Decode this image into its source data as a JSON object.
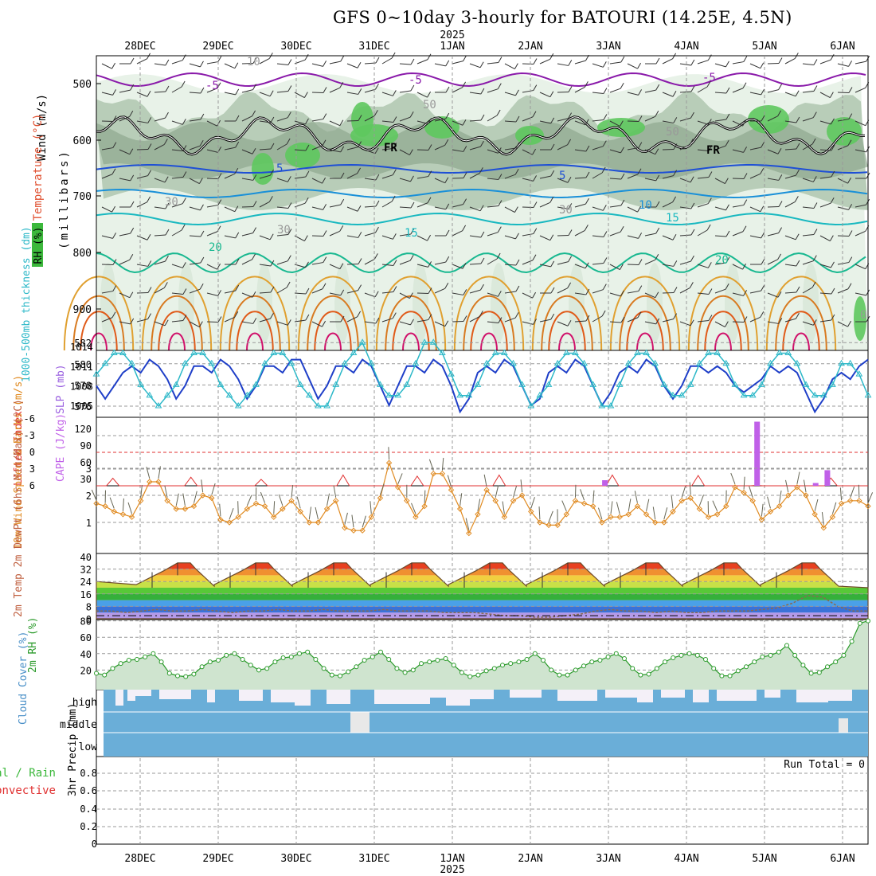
{
  "title": "GFS 0~10day 3-hourly for BATOURI (14.25E, 4.5N)",
  "colors": {
    "grid": "#9a9a9a",
    "slp": "#1f3fc8",
    "thick": "#2cb8c8",
    "lifted": "#e03030",
    "cape": "#c060e8",
    "wind": "#e08a20",
    "temp": "#6b4a2a",
    "dew": "#8a6a50",
    "rh": "#2a9a2a",
    "cloud": "#6aaed8",
    "purple": "#8a1aaa",
    "blue5": "#1e4fd6",
    "blue10": "#1a90d8",
    "teal15": "#18b8c0",
    "green20": "#18b890",
    "fr": "#000000"
  },
  "chart_data": {
    "type": "meteogram",
    "x_dates": [
      "28DEC",
      "29DEC",
      "30DEC",
      "31DEC",
      "1JAN",
      "2JAN",
      "3JAN",
      "4JAN",
      "5JAN",
      "6JAN"
    ],
    "year": "2025",
    "cross_section": {
      "ylabel": "(millibars)",
      "y_ticks": [
        500,
        600,
        700,
        800,
        900
      ],
      "side_labels": [
        "Wind (m/s)",
        "Temperature (°C)",
        "RH (%)"
      ],
      "contour_labels": [
        "10",
        "-5",
        "-5",
        "-5",
        "50",
        "30",
        "FR",
        "FR",
        "5",
        "5",
        "10",
        "15",
        "15",
        "30",
        "20",
        "20",
        "30",
        "50",
        "0"
      ]
    },
    "slp_thickness": {
      "left_label": "1000-500mb thickness (dm)",
      "right_label": "SLP (mb)",
      "left_ticks": [
        576,
        578,
        580,
        582
      ],
      "right_ticks": [
        1005,
        1008,
        1011,
        1014
      ],
      "slp": [
        1008,
        1006,
        1008,
        1010,
        1011,
        1010,
        1012,
        1011,
        1009,
        1006,
        1008,
        1011,
        1011,
        1010,
        1012,
        1011,
        1009,
        1006,
        1008,
        1011,
        1011,
        1010,
        1012,
        1012,
        1009,
        1006,
        1008,
        1011,
        1011,
        1010,
        1012,
        1011,
        1008,
        1005,
        1008,
        1011,
        1011,
        1010,
        1012,
        1011,
        1008,
        1004,
        1006,
        1010,
        1011,
        1010,
        1012,
        1011,
        1008,
        1005,
        1006,
        1010,
        1011,
        1010,
        1012,
        1011,
        1008,
        1005,
        1007,
        1010,
        1011,
        1010,
        1012,
        1011,
        1008,
        1006,
        1008,
        1011,
        1011,
        1010,
        1011,
        1010,
        1008,
        1007,
        1008,
        1009,
        1011,
        1010,
        1011,
        1010,
        1007,
        1004,
        1006,
        1009,
        1010,
        1009,
        1011,
        1012
      ],
      "thickness": [
        579,
        580,
        581,
        581,
        580,
        578,
        577,
        576,
        577,
        578,
        580,
        581,
        581,
        580,
        578,
        577,
        576,
        577,
        578,
        580,
        581,
        581,
        580,
        578,
        577,
        576,
        576,
        578,
        580,
        581,
        582,
        580,
        578,
        577,
        577,
        578,
        580,
        582,
        582,
        581,
        579,
        577,
        577,
        578,
        580,
        581,
        581,
        580,
        578,
        576,
        577,
        578,
        580,
        581,
        581,
        580,
        578,
        576,
        576,
        578,
        580,
        581,
        581,
        580,
        578,
        577,
        577,
        578,
        580,
        581,
        581,
        580,
        578,
        577,
        577,
        578,
        580,
        581,
        581,
        580,
        578,
        577,
        577,
        578,
        580,
        580,
        579,
        577
      ]
    },
    "lifted_cape": {
      "left_label": "Lifted Index",
      "right_label": "CAPE (J/kg)",
      "left_ticks": [
        "-6",
        "-3",
        "0",
        "3",
        "6"
      ],
      "right_ticks": [
        "120",
        "90",
        "60",
        "30"
      ],
      "lifted_peaks": [
        [
          0.1,
          3.5
        ],
        [
          1.1,
          4.0
        ],
        [
          2.0,
          3.0
        ],
        [
          3.05,
          5.0
        ],
        [
          4.0,
          4.5
        ],
        [
          5.05,
          5.0
        ],
        [
          6.5,
          5.0
        ],
        [
          7.6,
          4.8
        ],
        [
          8.35,
          0.2
        ],
        [
          9.3,
          3.6
        ]
      ],
      "cape_bars": [
        [
          6.4,
          10
        ],
        [
          8.35,
          115
        ],
        [
          9.1,
          5
        ],
        [
          9.25,
          28
        ]
      ]
    },
    "wind10m": {
      "label": "10m Wind Speed & Barbs (m/s)",
      "y_ticks": [
        1,
        2,
        3
      ],
      "speed": [
        1.7,
        1.6,
        1.4,
        1.3,
        1.2,
        1.8,
        2.5,
        2.5,
        1.8,
        1.5,
        1.5,
        1.6,
        2.0,
        1.9,
        1.1,
        1.0,
        1.2,
        1.5,
        1.7,
        1.6,
        1.2,
        1.5,
        1.8,
        1.4,
        1.0,
        1.0,
        1.5,
        1.8,
        0.8,
        0.7,
        0.7,
        1.2,
        1.9,
        3.2,
        2.3,
        1.8,
        1.2,
        1.6,
        2.8,
        2.8,
        2.2,
        1.5,
        0.6,
        1.3,
        2.2,
        1.8,
        1.2,
        1.8,
        2.0,
        1.4,
        1.0,
        0.9,
        0.9,
        1.3,
        1.8,
        1.7,
        1.6,
        1.0,
        1.2,
        1.2,
        1.3,
        1.6,
        1.3,
        1.0,
        1.0,
        1.4,
        1.8,
        1.9,
        1.5,
        1.2,
        1.3,
        1.6,
        2.3,
        2.1,
        1.8,
        1.1,
        1.4,
        1.6,
        2.0,
        2.3,
        2.0,
        1.3,
        0.8,
        1.2,
        1.7,
        1.8,
        1.8,
        1.6
      ]
    },
    "temp2m": {
      "label": "2m Temp 2m DewPt (6hr Min/Max) (°C)",
      "y_ticks": [
        0,
        8,
        16,
        24,
        32,
        40
      ],
      "max_temps": [
        35,
        35,
        35,
        35,
        35,
        35,
        35,
        35,
        35
      ],
      "min_temp": 20,
      "dewpoint": [
        5,
        5,
        4,
        5,
        6,
        5,
        5,
        6,
        5,
        4,
        5,
        5,
        6,
        5,
        5,
        6,
        5,
        5,
        5,
        6,
        5,
        5,
        5,
        4,
        4,
        4,
        3,
        2,
        2,
        1,
        1,
        2,
        3,
        5,
        6,
        5,
        5,
        4,
        5,
        4,
        4,
        5,
        5,
        5,
        6,
        7,
        10,
        15,
        14,
        8,
        5,
        5
      ]
    },
    "rh2m": {
      "label": "2m RH (%)",
      "y_ticks": [
        20,
        40,
        60,
        80
      ],
      "values": [
        16,
        14,
        22,
        28,
        32,
        33,
        36,
        40,
        30,
        16,
        13,
        12,
        15,
        24,
        30,
        32,
        38,
        40,
        33,
        26,
        20,
        22,
        30,
        35,
        36,
        40,
        42,
        33,
        22,
        14,
        13,
        18,
        24,
        32,
        36,
        42,
        33,
        22,
        17,
        20,
        28,
        30,
        32,
        34,
        26,
        17,
        12,
        14,
        19,
        22,
        26,
        28,
        30,
        33,
        40,
        32,
        20,
        14,
        14,
        20,
        25,
        30,
        32,
        36,
        40,
        34,
        22,
        14,
        15,
        22,
        30,
        35,
        38,
        40,
        38,
        33,
        22,
        13,
        13,
        19,
        24,
        30,
        36,
        38,
        42,
        50,
        38,
        26,
        16,
        17,
        24,
        30,
        38,
        55,
        77,
        80
      ]
    },
    "cloud_cover": {
      "label": "Cloud Cover (%)",
      "levels": [
        "high",
        "middle",
        "low"
      ]
    },
    "precip": {
      "label": "3hr Precip (mm)",
      "side_label": "Total / Rain",
      "side_label2": "Convective",
      "run_total": "Run Total = 0",
      "y_ticks": [
        "0",
        "0.2",
        "0.4",
        "0.6",
        "0.8"
      ]
    }
  }
}
